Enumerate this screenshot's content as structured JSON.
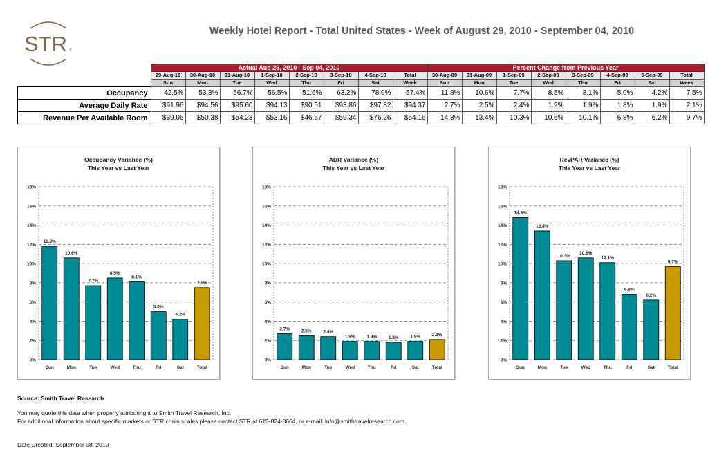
{
  "logo": {
    "text": "STR",
    "color": "#7a6449"
  },
  "title": "Weekly Hotel Report - Total United States - Week of August 29, 2010 - September 04, 2010",
  "table": {
    "actual_header": "Actual Aug 29, 2010 - Sep 04, 2010",
    "change_header": "Percent Change from Previous Year",
    "actual_dates": [
      "29-Aug-10",
      "30-Aug-10",
      "31-Aug-10",
      "1-Sep-10",
      "2-Sep-10",
      "3-Sep-10",
      "4-Sep-10",
      "Total"
    ],
    "actual_days": [
      "Sun",
      "Mon",
      "Tue",
      "Wed",
      "Thu",
      "Fri",
      "Sat",
      "Week"
    ],
    "change_dates": [
      "30-Aug-09",
      "31-Aug-09",
      "1-Sep-09",
      "2-Sep-09",
      "3-Sep-09",
      "4-Sep-09",
      "5-Sep-09",
      "Total"
    ],
    "change_days": [
      "Sun",
      "Mon",
      "Tue",
      "Wed",
      "Thu",
      "Fri",
      "Sat",
      "Week"
    ],
    "rows": [
      {
        "label": "Occupancy",
        "actual": [
          "42.5%",
          "53.3%",
          "56.7%",
          "56.5%",
          "51.6%",
          "63.2%",
          "78.0%",
          "57.4%"
        ],
        "change": [
          "11.8%",
          "10.6%",
          "7.7%",
          "8.5%",
          "8.1%",
          "5.0%",
          "4.2%",
          "7.5%"
        ]
      },
      {
        "label": "Average Daily Rate",
        "actual": [
          "$91.96",
          "$94.56",
          "$95.60",
          "$94.13",
          "$90.51",
          "$93.86",
          "$97.82",
          "$94.37"
        ],
        "change": [
          "2.7%",
          "2.5%",
          "2.4%",
          "1.9%",
          "1.9%",
          "1.8%",
          "1.9%",
          "2.1%"
        ]
      },
      {
        "label": "Revenue Per Available Room",
        "actual": [
          "$39.06",
          "$50.38",
          "$54.23",
          "$53.16",
          "$46.67",
          "$59.34",
          "$76.26",
          "$54.16"
        ],
        "change": [
          "14.8%",
          "13.4%",
          "10.3%",
          "10.6%",
          "10.1%",
          "6.8%",
          "6.2%",
          "9.7%"
        ]
      }
    ]
  },
  "chart_data": [
    {
      "type": "bar",
      "title": "Occupancy Variance (%)",
      "subtitle": "This Year vs Last Year",
      "categories": [
        "Sun",
        "Mon",
        "Tue",
        "Wed",
        "Thu",
        "Fri",
        "Sat",
        "Total"
      ],
      "values": [
        11.8,
        10.6,
        7.7,
        8.5,
        8.1,
        5.0,
        4.2,
        7.5
      ],
      "labels": [
        "11.8%",
        "10.6%",
        "7.7%",
        "8.5%",
        "8.1%",
        "5.0%",
        "4.2%",
        "7.5%"
      ],
      "ylim": [
        0,
        18
      ],
      "yticks": [
        "0%",
        "2%",
        "4%",
        "6%",
        "8%",
        "10%",
        "12%",
        "14%",
        "16%",
        "18%"
      ],
      "grid": true,
      "bar_color": "#008b97",
      "total_color": "#c99a00"
    },
    {
      "type": "bar",
      "title": "ADR Variance (%)",
      "subtitle": "This Year vs Last Year",
      "categories": [
        "Sun",
        "Mon",
        "Tue",
        "Wed",
        "Thu",
        "Fri",
        "Sat",
        "Total"
      ],
      "values": [
        2.7,
        2.5,
        2.4,
        1.9,
        1.9,
        1.8,
        1.9,
        2.1
      ],
      "labels": [
        "2.7%",
        "2.5%",
        "2.4%",
        "1.9%",
        "1.9%",
        "1.8%",
        "1.9%",
        "2.1%"
      ],
      "ylim": [
        0,
        18
      ],
      "yticks": [
        "0%",
        "2%",
        "4%",
        "6%",
        "8%",
        "10%",
        "12%",
        "14%",
        "16%",
        "18%"
      ],
      "grid": true,
      "bar_color": "#008b97",
      "total_color": "#c99a00"
    },
    {
      "type": "bar",
      "title": "RevPAR Variance (%)",
      "subtitle": "This Year vs Last Year",
      "categories": [
        "Sun",
        "Mon",
        "Tue",
        "Wed",
        "Thu",
        "Fri",
        "Sat",
        "Total"
      ],
      "values": [
        14.8,
        13.4,
        10.3,
        10.6,
        10.1,
        6.8,
        6.2,
        9.7
      ],
      "labels": [
        "14.8%",
        "13.4%",
        "10.3%",
        "10.6%",
        "10.1%",
        "6.8%",
        "6.2%",
        "9.7%"
      ],
      "ylim": [
        0,
        18
      ],
      "yticks": [
        "0%",
        "2%",
        "4%",
        "6%",
        "8%",
        "10%",
        "12%",
        "14%",
        "16%",
        "18%"
      ],
      "grid": true,
      "bar_color": "#008b97",
      "total_color": "#c99a00"
    }
  ],
  "footer": {
    "source": "Source: Smith Travel Research",
    "line1": "You may quote this data when properly attributing it to Smith Travel Research, Inc.",
    "line2": "For additional information about specific markets or STR chain scales please contact STR at 615-824-8664, or e-mail: info@smithtravelresearch.com.",
    "date_created": "Date Created: September 08, 2010"
  }
}
